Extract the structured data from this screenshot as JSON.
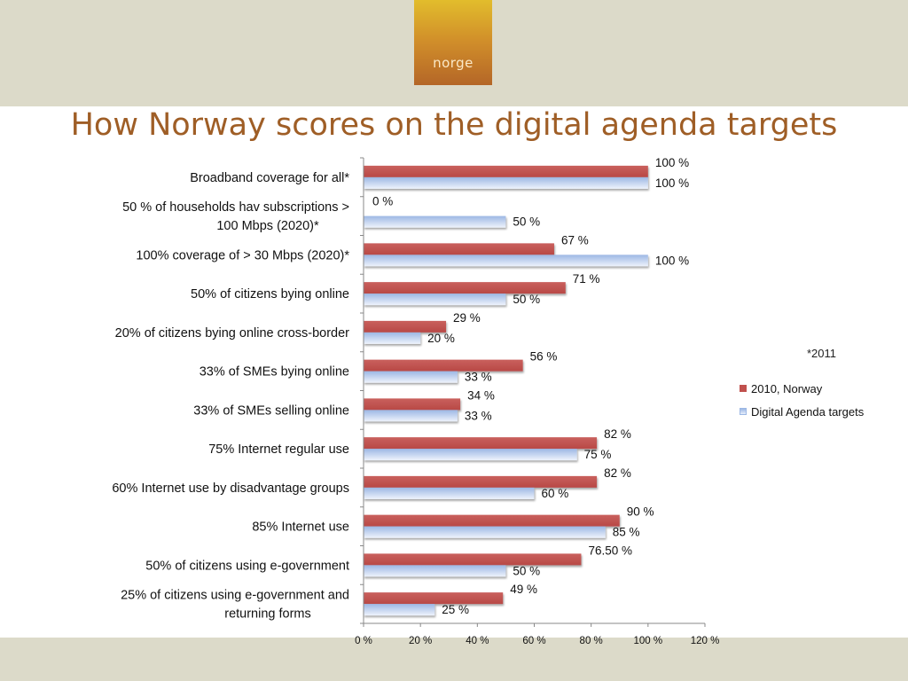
{
  "brand": {
    "text": "norge"
  },
  "chart_data": {
    "type": "bar",
    "orientation": "horizontal",
    "title": "How Norway scores on the digital agenda targets",
    "categories": [
      "Broadband coverage for all*",
      "50 % of households hav subscriptions > 100 Mbps (2020)*",
      "100% coverage of > 30 Mbps (2020)*",
      "50% of citizens bying online",
      "20% of citizens bying online cross-border",
      "33% of SMEs bying online",
      "33% of SMEs selling online",
      "75% Internet regular use",
      "60% Internet use by disadvantage groups",
      "85% Internet use",
      "50% of citizens using e-government",
      "25% of citizens using e-government and returning forms"
    ],
    "series": [
      {
        "name": "2010, Norway",
        "color": "#c0504d",
        "values": [
          100,
          0,
          67,
          71,
          29,
          56,
          34,
          82,
          82,
          90,
          76.5,
          49
        ],
        "labels": [
          "100 %",
          "0 %",
          "67 %",
          "71 %",
          "29 %",
          "56 %",
          "34 %",
          "82 %",
          "82 %",
          "90 %",
          "76.50 %",
          "49 %"
        ]
      },
      {
        "name": "Digital Agenda targets",
        "color": "#9cb7e4",
        "values": [
          100,
          50,
          100,
          50,
          20,
          33,
          33,
          75,
          60,
          85,
          50,
          25
        ],
        "labels": [
          "100 %",
          "50 %",
          "100 %",
          "50 %",
          "20 %",
          "33 %",
          "33 %",
          "75 %",
          "60 %",
          "85 %",
          "50 %",
          "25 %"
        ]
      }
    ],
    "xlim": [
      0,
      120
    ],
    "xticks": [
      0,
      20,
      40,
      60,
      80,
      100,
      120
    ],
    "xtick_labels": [
      "0 %",
      "20 %",
      "40 %",
      "60 %",
      "80 %",
      "100 %",
      "120 %"
    ],
    "grid": false,
    "legend_position": "right"
  },
  "note": "*2011"
}
